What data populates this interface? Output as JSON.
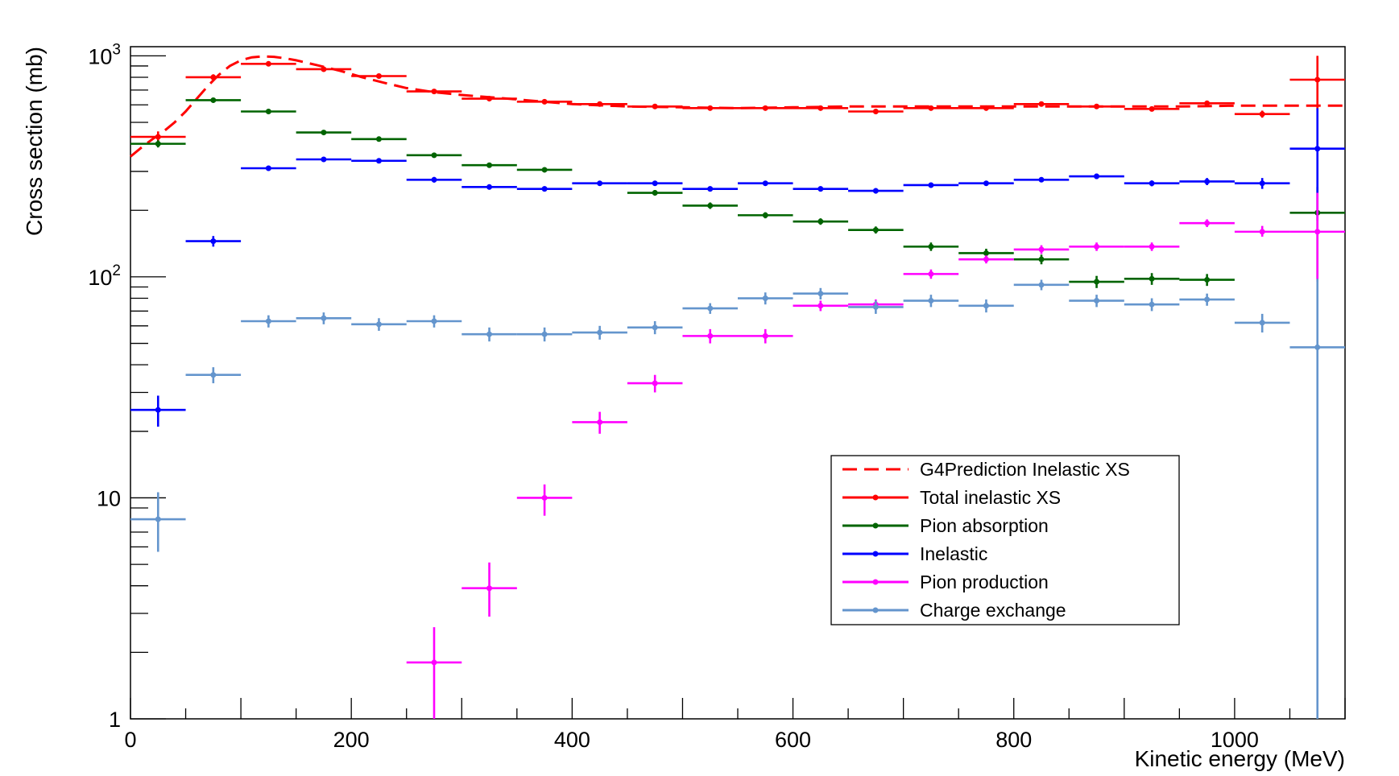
{
  "chart_data": {
    "type": "scatter",
    "title": "",
    "xlabel": "Kinetic energy (MeV)",
    "ylabel": "Cross section (mb)",
    "xlim": [
      0,
      1100
    ],
    "ylim": [
      1,
      1100
    ],
    "y_scale": "log",
    "x_ticks": [
      0,
      200,
      400,
      600,
      800,
      1000
    ],
    "x_tick_labels": [
      "0",
      "200",
      "400",
      "600",
      "800",
      "1000"
    ],
    "y_tick_labels": [
      {
        "value": 1,
        "base": "1",
        "exp": ""
      },
      {
        "value": 10,
        "base": "10",
        "exp": ""
      },
      {
        "value": 100,
        "base": "10",
        "exp": "2"
      },
      {
        "value": 1000,
        "base": "10",
        "exp": "3"
      }
    ],
    "grid": false,
    "legend_position": "lower-right",
    "curve": {
      "name": "G4Prediction Inelastic XS",
      "color": "#ff0000",
      "x": [
        0,
        10,
        20,
        30,
        40,
        50,
        60,
        70,
        80,
        90,
        100,
        110,
        120,
        130,
        140,
        150,
        170,
        190,
        210,
        230,
        250,
        275,
        300,
        350,
        400,
        450,
        500,
        550,
        600,
        650,
        700,
        750,
        800,
        850,
        900,
        950,
        1000,
        1050,
        1100
      ],
      "y": [
        350,
        385,
        420,
        455,
        500,
        560,
        640,
        730,
        820,
        900,
        955,
        985,
        995,
        990,
        975,
        955,
        905,
        855,
        800,
        755,
        715,
        685,
        665,
        635,
        605,
        590,
        585,
        580,
        585,
        590,
        590,
        590,
        590,
        590,
        590,
        590,
        595,
        595,
        595
      ]
    },
    "series": [
      {
        "name": "Total inelastic XS",
        "color": "#ff0000",
        "x": [
          25,
          75,
          125,
          175,
          225,
          275,
          325,
          375,
          425,
          475,
          525,
          575,
          625,
          675,
          725,
          775,
          825,
          875,
          925,
          975,
          1025,
          1075
        ],
        "y": [
          430,
          800,
          920,
          870,
          810,
          690,
          640,
          620,
          605,
          590,
          580,
          580,
          580,
          560,
          580,
          580,
          605,
          590,
          575,
          610,
          545,
          780
        ],
        "err_low": [
          25,
          25,
          20,
          18,
          15,
          15,
          12,
          12,
          10,
          10,
          10,
          10,
          10,
          15,
          10,
          10,
          15,
          12,
          12,
          15,
          20,
          210
        ],
        "err_high": [
          25,
          25,
          20,
          18,
          15,
          15,
          12,
          12,
          10,
          10,
          10,
          10,
          10,
          15,
          10,
          10,
          15,
          12,
          12,
          15,
          20,
          220
        ],
        "xerr": 25
      },
      {
        "name": "Pion absorption",
        "color": "#006400",
        "x": [
          25,
          75,
          125,
          175,
          225,
          275,
          325,
          375,
          475,
          525,
          575,
          625,
          675,
          725,
          775,
          825,
          875,
          925,
          975,
          1075
        ],
        "y": [
          400,
          630,
          560,
          450,
          420,
          355,
          320,
          305,
          240,
          210,
          190,
          178,
          163,
          137,
          128,
          120,
          95,
          98,
          97,
          195
        ],
        "err_low": [
          15,
          15,
          12,
          10,
          10,
          8,
          8,
          8,
          7,
          7,
          6,
          6,
          6,
          6,
          6,
          6,
          6,
          6,
          6,
          97
        ],
        "err_high": [
          15,
          15,
          12,
          10,
          10,
          8,
          8,
          8,
          7,
          7,
          6,
          6,
          6,
          6,
          6,
          6,
          6,
          6,
          6,
          60
        ],
        "xerr": 25
      },
      {
        "name": "Inelastic",
        "color": "#0000ff",
        "x": [
          25,
          75,
          125,
          175,
          225,
          275,
          325,
          375,
          425,
          475,
          525,
          575,
          625,
          675,
          725,
          775,
          825,
          875,
          925,
          975,
          1025,
          1075
        ],
        "y": [
          25,
          145,
          310,
          340,
          335,
          275,
          255,
          250,
          265,
          265,
          250,
          265,
          250,
          245,
          260,
          265,
          275,
          285,
          265,
          270,
          265,
          380
        ],
        "err_low": [
          4,
          8,
          8,
          8,
          8,
          8,
          7,
          7,
          7,
          7,
          7,
          7,
          7,
          7,
          7,
          7,
          7,
          8,
          8,
          10,
          15,
          200
        ],
        "err_high": [
          4,
          8,
          8,
          8,
          8,
          8,
          7,
          7,
          7,
          7,
          7,
          7,
          7,
          7,
          7,
          7,
          7,
          8,
          8,
          10,
          15,
          200
        ],
        "xerr": 25
      },
      {
        "name": "Pion production",
        "color": "#ff00ff",
        "x": [
          275,
          325,
          375,
          425,
          475,
          525,
          575,
          625,
          675,
          725,
          775,
          825,
          875,
          925,
          975,
          1025,
          1075
        ],
        "y": [
          1.8,
          3.9,
          10,
          22,
          33,
          54,
          54,
          74,
          75,
          103,
          120,
          133,
          137,
          137,
          175,
          160,
          160
        ],
        "err_low": [
          0.8,
          1.0,
          1.7,
          2.5,
          3,
          4,
          4,
          4,
          4,
          5,
          5,
          6,
          6,
          6,
          7,
          8,
          65
        ],
        "err_high": [
          0.8,
          1.2,
          1.5,
          2.5,
          3,
          4,
          4,
          4,
          4,
          5,
          5,
          6,
          6,
          6,
          7,
          10,
          80
        ],
        "xerr": 25
      },
      {
        "name": "Charge exchange",
        "color": "#6495cd",
        "x": [
          25,
          75,
          125,
          175,
          225,
          275,
          325,
          375,
          425,
          475,
          525,
          575,
          625,
          675,
          725,
          775,
          825,
          875,
          925,
          975,
          1025,
          1075
        ],
        "y": [
          8,
          36,
          63,
          65,
          61,
          63,
          55,
          55,
          56,
          59,
          72,
          80,
          84,
          73,
          78,
          74,
          92,
          78,
          75,
          79,
          62,
          48
        ],
        "err_low": [
          2.3,
          3,
          4,
          4,
          4,
          4,
          4,
          4,
          4,
          4,
          4,
          5,
          5,
          5,
          5,
          5,
          5,
          5,
          5,
          5,
          6,
          47
        ],
        "err_high": [
          2.6,
          3,
          4,
          4,
          4,
          4,
          4,
          4,
          4,
          4,
          4,
          5,
          5,
          5,
          5,
          5,
          5,
          5,
          5,
          5,
          6,
          50
        ],
        "xerr": 25
      }
    ]
  }
}
